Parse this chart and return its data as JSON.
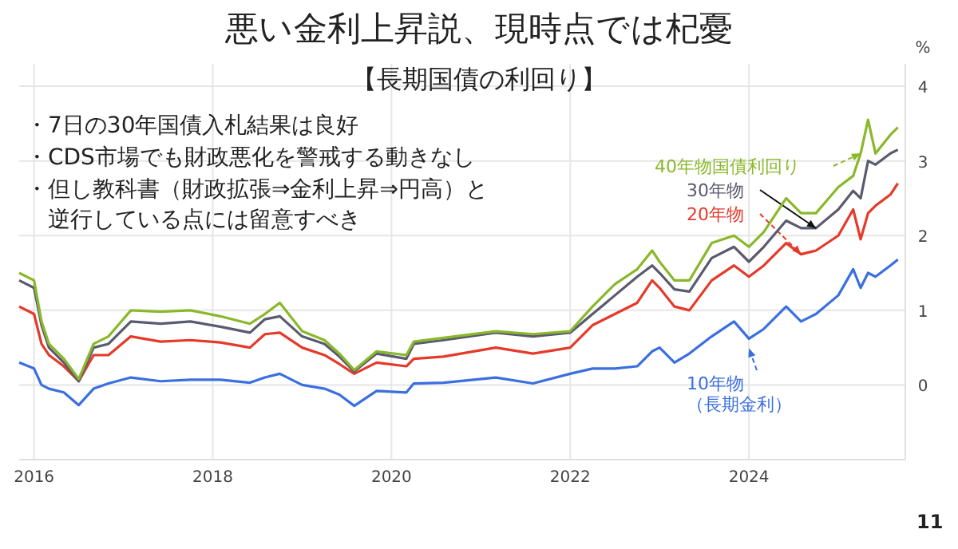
{
  "chart_data": {
    "type": "line",
    "title": "悪い金利上昇説、現時点では杞憂",
    "subtitle": "【長期国債の利回り】",
    "ylabel": "%",
    "annotations": [
      "・7日の30年国債入札結果は良好",
      "・CDS市場でも財政悪化を警戒する動きなし",
      "・但し教科書（財政拡張⇒金利上昇⇒円高）と逆行している点には留意すべき",
      "11"
    ],
    "x": [
      "2015-11",
      "2016-01",
      "2016-02",
      "2016-03",
      "2016-05",
      "2016-07",
      "2016-09",
      "2016-11",
      "2017-02",
      "2017-06",
      "2017-10",
      "2018-02",
      "2018-06",
      "2018-08",
      "2018-10",
      "2019-01",
      "2019-04",
      "2019-06",
      "2019-08",
      "2019-11",
      "2020-03",
      "2020-04",
      "2020-08",
      "2021-03",
      "2021-08",
      "2022-01",
      "2022-04",
      "2022-07",
      "2022-10",
      "2022-12",
      "2023-01",
      "2023-03",
      "2023-05",
      "2023-08",
      "2023-11",
      "2024-01",
      "2024-03",
      "2024-06",
      "2024-08",
      "2024-10",
      "2025-01",
      "2025-03",
      "2025-04",
      "2025-05",
      "2025-06",
      "2025-08",
      "2025-09"
    ],
    "series": [
      {
        "name": "10年物（長期金利）",
        "color": "#3a6fe0",
        "values": [
          0.3,
          0.22,
          0.0,
          -0.05,
          -0.1,
          -0.27,
          -0.05,
          0.02,
          0.1,
          0.05,
          0.07,
          0.07,
          0.03,
          0.1,
          0.15,
          0.0,
          -0.05,
          -0.13,
          -0.28,
          -0.08,
          -0.1,
          0.02,
          0.03,
          0.1,
          0.02,
          0.15,
          0.22,
          0.22,
          0.25,
          0.45,
          0.5,
          0.3,
          0.42,
          0.65,
          0.85,
          0.62,
          0.75,
          1.05,
          0.85,
          0.95,
          1.2,
          1.55,
          1.3,
          1.5,
          1.45,
          1.6,
          1.68
        ]
      },
      {
        "name": "20年物",
        "color": "#e53a2a",
        "values": [
          1.05,
          0.95,
          0.55,
          0.4,
          0.25,
          0.05,
          0.4,
          0.4,
          0.65,
          0.58,
          0.6,
          0.57,
          0.5,
          0.68,
          0.7,
          0.5,
          0.4,
          0.28,
          0.15,
          0.3,
          0.25,
          0.35,
          0.38,
          0.5,
          0.42,
          0.5,
          0.8,
          0.95,
          1.1,
          1.4,
          1.3,
          1.05,
          1.0,
          1.4,
          1.6,
          1.45,
          1.6,
          1.9,
          1.75,
          1.8,
          2.0,
          2.35,
          1.95,
          2.3,
          2.4,
          2.55,
          2.7
        ]
      },
      {
        "name": "30年物",
        "color": "#5a5a70",
        "values": [
          1.4,
          1.3,
          0.8,
          0.5,
          0.3,
          0.05,
          0.5,
          0.55,
          0.85,
          0.82,
          0.85,
          0.78,
          0.7,
          0.88,
          0.92,
          0.65,
          0.55,
          0.38,
          0.18,
          0.42,
          0.35,
          0.55,
          0.6,
          0.7,
          0.65,
          0.7,
          0.95,
          1.2,
          1.45,
          1.6,
          1.5,
          1.28,
          1.25,
          1.7,
          1.85,
          1.65,
          1.85,
          2.2,
          2.1,
          2.1,
          2.35,
          2.6,
          2.5,
          3.0,
          2.95,
          3.1,
          3.15
        ]
      },
      {
        "name": "40年物国債利回り",
        "color": "#8ab82a",
        "values": [
          1.5,
          1.4,
          0.85,
          0.55,
          0.35,
          0.08,
          0.55,
          0.65,
          1.0,
          0.98,
          1.0,
          0.92,
          0.82,
          0.95,
          1.1,
          0.72,
          0.6,
          0.42,
          0.2,
          0.45,
          0.4,
          0.58,
          0.63,
          0.72,
          0.68,
          0.72,
          1.05,
          1.35,
          1.55,
          1.8,
          1.65,
          1.4,
          1.4,
          1.9,
          2.0,
          1.85,
          2.05,
          2.5,
          2.3,
          2.3,
          2.65,
          2.8,
          3.1,
          3.55,
          3.1,
          3.35,
          3.45
        ]
      }
    ],
    "xlim": [
      "2015-11",
      "2025-10"
    ],
    "xticks": [
      "2016",
      "2018",
      "2020",
      "2022",
      "2024"
    ],
    "ylim": [
      -1,
      4.3
    ],
    "yticks": [
      0,
      1,
      2,
      3,
      4
    ],
    "grid": true,
    "marker": "none",
    "line_style": "solid"
  }
}
